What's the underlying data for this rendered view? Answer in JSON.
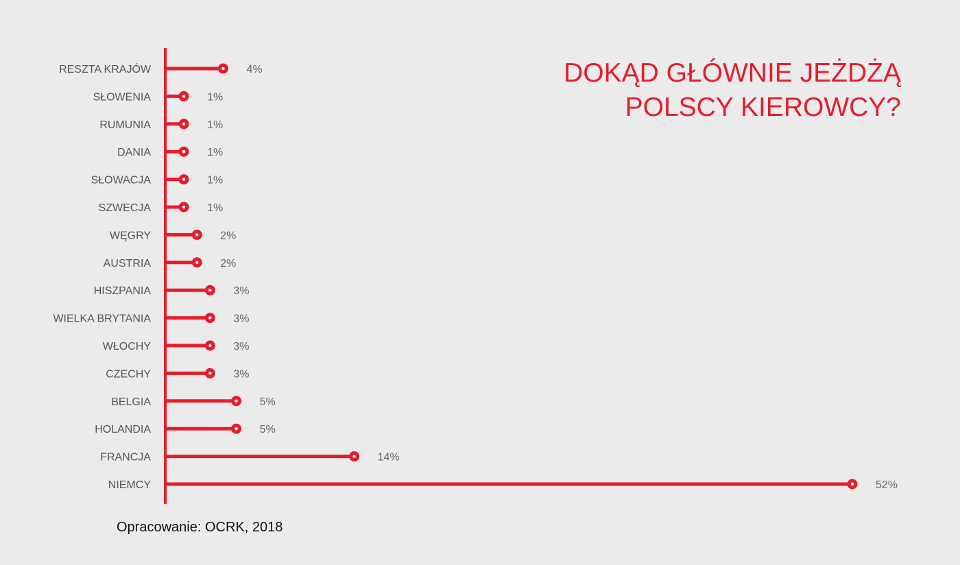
{
  "chart_data": {
    "type": "bar",
    "orientation": "horizontal",
    "title": [
      "DOKĄD GŁÓWNIE JEŻDŻĄ",
      "POLSCY KIEROWCY?"
    ],
    "categories": [
      "RESZTA KRAJÓW",
      "SŁOWENIA",
      "RUMUNIA",
      "DANIA",
      "SŁOWACJA",
      "SZWECJA",
      "WĘGRY",
      "AUSTRIA",
      "HISZPANIA",
      "WIELKA BRYTANIA",
      "WŁOCHY",
      "CZECHY",
      "BELGIA",
      "HOLANDIA",
      "FRANCJA",
      "NIEMCY"
    ],
    "values": [
      4,
      1,
      1,
      1,
      1,
      1,
      2,
      2,
      3,
      3,
      3,
      3,
      5,
      5,
      14,
      52
    ],
    "value_labels": [
      "4%",
      "1%",
      "1%",
      "1%",
      "1%",
      "1%",
      "2%",
      "2%",
      "3%",
      "3%",
      "3%",
      "3%",
      "5%",
      "5%",
      "14%",
      "52%"
    ],
    "unit": "%",
    "xlim": [
      0,
      52
    ],
    "grid": false,
    "color": "#e31e2d"
  },
  "source": "Opracowanie: OCRK, 2018"
}
